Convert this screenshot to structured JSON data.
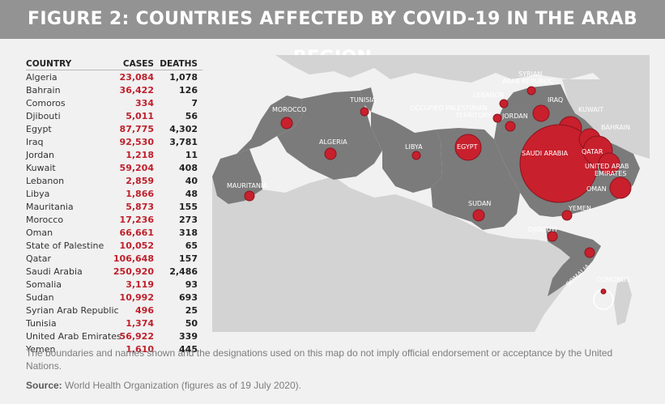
{
  "title": "FIGURE 2: COUNTRIES AFFECTED BY COVID-19 IN THE ARAB REGION",
  "table": {
    "headers": {
      "country": "COUNTRY",
      "cases": "CASES",
      "deaths": "DEATHS"
    },
    "rows": [
      {
        "country": "Algeria",
        "cases": "23,084",
        "deaths": "1,078"
      },
      {
        "country": "Bahrain",
        "cases": "36,422",
        "deaths": "126"
      },
      {
        "country": "Comoros",
        "cases": "334",
        "deaths": "7"
      },
      {
        "country": "Djibouti",
        "cases": "5,011",
        "deaths": "56"
      },
      {
        "country": "Egypt",
        "cases": "87,775",
        "deaths": "4,302"
      },
      {
        "country": "Iraq",
        "cases": "92,530",
        "deaths": "3,781"
      },
      {
        "country": "Jordan",
        "cases": "1,218",
        "deaths": "11"
      },
      {
        "country": "Kuwait",
        "cases": "59,204",
        "deaths": "408"
      },
      {
        "country": "Lebanon",
        "cases": "2,859",
        "deaths": "40"
      },
      {
        "country": "Libya",
        "cases": "1,866",
        "deaths": "48"
      },
      {
        "country": "Mauritania",
        "cases": "5,873",
        "deaths": "155"
      },
      {
        "country": "Morocco",
        "cases": "17,236",
        "deaths": "273"
      },
      {
        "country": "Oman",
        "cases": "66,661",
        "deaths": "318"
      },
      {
        "country": "State of Palestine",
        "cases": "10,052",
        "deaths": "65"
      },
      {
        "country": "Qatar",
        "cases": "106,648",
        "deaths": "157"
      },
      {
        "country": "Saudi Arabia",
        "cases": "250,920",
        "deaths": "2,486"
      },
      {
        "country": "Somalia",
        "cases": "3,119",
        "deaths": "93"
      },
      {
        "country": "Sudan",
        "cases": "10,992",
        "deaths": "693"
      },
      {
        "country": "Syrian Arab Republic",
        "cases": "496",
        "deaths": "25"
      },
      {
        "country": "Tunisia",
        "cases": "1,374",
        "deaths": "50"
      },
      {
        "country": "United Arab Emirates",
        "cases": "56,922",
        "deaths": "339"
      },
      {
        "country": "Yemen",
        "cases": "1,610",
        "deaths": "445"
      }
    ]
  },
  "map": {
    "labels": {
      "morocco": "MOROCCO",
      "tunisia": "TUNISIA",
      "algeria": "ALGERIA",
      "libya": "LIBYA",
      "egypt": "EGYPT",
      "mauritania": "MAURITANIA",
      "sudan": "SUDAN",
      "syria_1": "SYRIAN",
      "syria_2": "ARAB REPUBLIC",
      "lebanon": "LEBANON",
      "palestine_1": "OCCUPIED PALESTINIAN",
      "palestine_2": "TERRITORY",
      "jordan": "JORDAN",
      "iraq": "IRAQ",
      "kuwait": "KUWAIT",
      "bahrain": "BAHRAIN",
      "saudi": "SAUDI ARABIA",
      "qatar": "QATAR",
      "uae_1": "UNITED ARAB",
      "uae_2": "EMIRATES",
      "oman": "OMAN",
      "yemen": "YEMEN",
      "djibouti": "DJIBOUTI",
      "somalia": "SOMALIA",
      "comoros": "COMOROS"
    },
    "colors": {
      "arab_land": "#7b7b7b",
      "other_land": "#d3d3d3",
      "sea": "#f1f1f1",
      "bubble": "#c8202d"
    }
  },
  "disclaimer": "The boundaries and names shown and the designations used on this map do not imply official endorsement or acceptance by the United Nations.",
  "source": {
    "label": "Source:",
    "text": "World Health Organization (figures as of 19 July 2020)."
  }
}
